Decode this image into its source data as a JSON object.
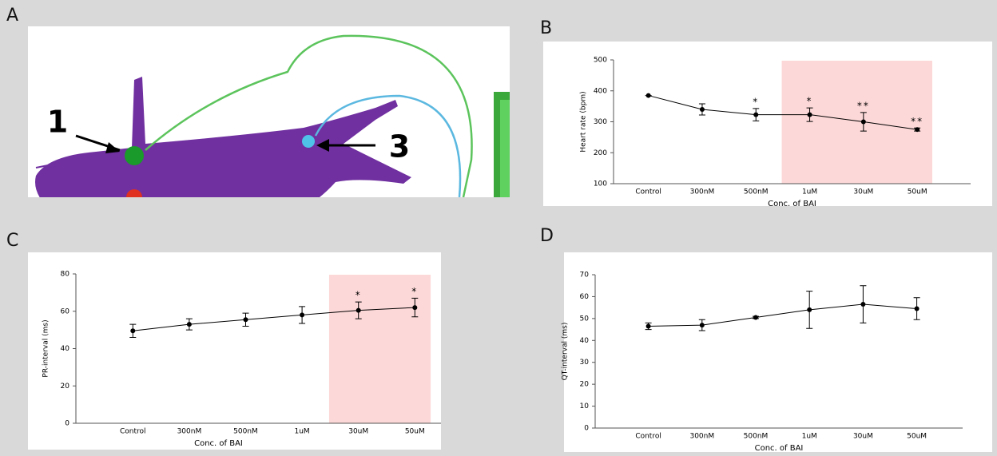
{
  "panel_labels": [
    "A",
    "B",
    "C",
    "D"
  ],
  "illustration": {
    "labels": [
      "1",
      "3"
    ]
  },
  "chart_data": [
    {
      "type": "line",
      "ylabel": "Heart rate (bpm)",
      "xlabel": "Conc. of BAI",
      "categories": [
        "Control",
        "300nM",
        "500nM",
        "1uM",
        "30uM",
        "50uM"
      ],
      "values": [
        385,
        340,
        323,
        323,
        300,
        275
      ],
      "errors": [
        0,
        18,
        20,
        22,
        30,
        5
      ],
      "annotations": [
        null,
        null,
        "*",
        "*",
        "**",
        "**"
      ],
      "ylim": [
        100,
        500
      ],
      "yticks": [
        100,
        200,
        300,
        400,
        500
      ],
      "color": "#000000",
      "highlight": {
        "from": 3,
        "to": 5,
        "color": "#fdd8d8"
      }
    },
    {
      "type": "line",
      "ylabel": "PR-interval (ms)",
      "xlabel": "Conc. of BAI",
      "categories": [
        "Control",
        "300nM",
        "500nM",
        "1uM",
        "30uM",
        "50uM"
      ],
      "values": [
        49.5,
        53,
        55.5,
        58,
        60.5,
        62
      ],
      "errors": [
        3.5,
        3,
        3.5,
        4.5,
        4.5,
        5
      ],
      "annotations": [
        null,
        null,
        null,
        null,
        "*",
        "*"
      ],
      "ylim": [
        0,
        80
      ],
      "yticks": [
        0,
        20,
        40,
        60,
        80
      ],
      "color": "#000000",
      "highlight": {
        "from": 4,
        "to": 5,
        "color": "#fdd8d8"
      }
    },
    {
      "type": "line",
      "ylabel": "QT-interval (ms)",
      "xlabel": "Conc. of BAI",
      "categories": [
        "Control",
        "300nM",
        "500nM",
        "1uM",
        "30uM",
        "50uM"
      ],
      "values": [
        46.5,
        47,
        50.5,
        54,
        56.5,
        54.5
      ],
      "errors": [
        1.5,
        2.5,
        0.5,
        8.5,
        8.5,
        5
      ],
      "ylim": [
        0,
        70
      ],
      "yticks": [
        0,
        10,
        20,
        30,
        40,
        50,
        60,
        70
      ],
      "color": "#000000"
    }
  ]
}
